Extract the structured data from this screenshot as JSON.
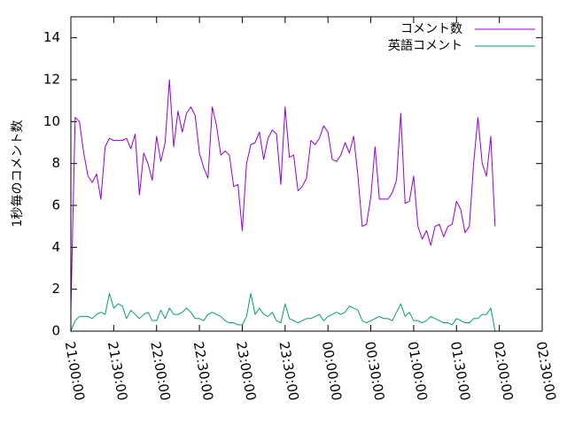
{
  "chart_data": {
    "type": "line",
    "title": "",
    "xlabel": "",
    "ylabel": "1秒毎のコメント数",
    "ylim": [
      0,
      15
    ],
    "yticks": [
      0,
      2,
      4,
      6,
      8,
      10,
      12,
      14
    ],
    "xlim": [
      "21:00:00",
      "02:30:00"
    ],
    "xticks": [
      "21:00:00",
      "21:30:00",
      "22:00:00",
      "22:30:00",
      "23:00:00",
      "23:30:00",
      "00:00:00",
      "00:30:00",
      "01:00:00",
      "01:30:00",
      "02:00:00",
      "02:30:00"
    ],
    "legend_position": "top-right",
    "grid": false,
    "series": [
      {
        "name": "コメント数",
        "color": "#9400d3",
        "points": [
          [
            "21:00:00",
            1.0
          ],
          [
            "21:03:00",
            10.2
          ],
          [
            "21:06:00",
            10.0
          ],
          [
            "21:09:00",
            8.5
          ],
          [
            "21:12:00",
            7.4
          ],
          [
            "21:15:00",
            7.1
          ],
          [
            "21:18:00",
            7.5
          ],
          [
            "21:21:00",
            6.3
          ],
          [
            "21:24:00",
            8.8
          ],
          [
            "21:27:00",
            9.2
          ],
          [
            "21:30:00",
            9.1
          ],
          [
            "21:33:00",
            9.1
          ],
          [
            "21:36:00",
            9.1
          ],
          [
            "21:39:00",
            9.2
          ],
          [
            "21:42:00",
            8.7
          ],
          [
            "21:45:00",
            9.4
          ],
          [
            "21:48:00",
            6.5
          ],
          [
            "21:51:00",
            8.5
          ],
          [
            "21:54:00",
            8.0
          ],
          [
            "21:57:00",
            7.2
          ],
          [
            "22:00:00",
            9.3
          ],
          [
            "22:03:00",
            8.1
          ],
          [
            "22:06:00",
            9.0
          ],
          [
            "22:09:00",
            12.0
          ],
          [
            "22:12:00",
            8.8
          ],
          [
            "22:15:00",
            10.5
          ],
          [
            "22:18:00",
            9.5
          ],
          [
            "22:21:00",
            10.4
          ],
          [
            "22:24:00",
            10.7
          ],
          [
            "22:27:00",
            10.3
          ],
          [
            "22:30:00",
            8.5
          ],
          [
            "22:33:00",
            7.8
          ],
          [
            "22:36:00",
            7.3
          ],
          [
            "22:39:00",
            10.7
          ],
          [
            "22:42:00",
            9.8
          ],
          [
            "22:45:00",
            8.4
          ],
          [
            "22:48:00",
            8.6
          ],
          [
            "22:51:00",
            8.4
          ],
          [
            "22:54:00",
            6.9
          ],
          [
            "22:57:00",
            7.0
          ],
          [
            "23:00:00",
            4.8
          ],
          [
            "23:03:00",
            8.0
          ],
          [
            "23:06:00",
            8.9
          ],
          [
            "23:09:00",
            9.0
          ],
          [
            "23:12:00",
            9.5
          ],
          [
            "23:15:00",
            8.2
          ],
          [
            "23:18:00",
            9.2
          ],
          [
            "23:21:00",
            9.6
          ],
          [
            "23:24:00",
            9.4
          ],
          [
            "23:27:00",
            7.0
          ],
          [
            "23:30:00",
            10.7
          ],
          [
            "23:33:00",
            8.3
          ],
          [
            "23:36:00",
            8.4
          ],
          [
            "23:39:00",
            6.7
          ],
          [
            "23:42:00",
            6.9
          ],
          [
            "23:45:00",
            7.3
          ],
          [
            "23:48:00",
            9.1
          ],
          [
            "23:51:00",
            8.9
          ],
          [
            "23:54:00",
            9.2
          ],
          [
            "23:57:00",
            9.8
          ],
          [
            "00:00:00",
            9.5
          ],
          [
            "00:03:00",
            8.2
          ],
          [
            "00:06:00",
            8.1
          ],
          [
            "00:09:00",
            8.4
          ],
          [
            "00:12:00",
            9.0
          ],
          [
            "00:15:00",
            8.5
          ],
          [
            "00:18:00",
            9.3
          ],
          [
            "00:21:00",
            7.4
          ],
          [
            "00:24:00",
            5.0
          ],
          [
            "00:27:00",
            5.1
          ],
          [
            "00:30:00",
            6.4
          ],
          [
            "00:33:00",
            8.8
          ],
          [
            "00:36:00",
            6.3
          ],
          [
            "00:39:00",
            6.3
          ],
          [
            "00:42:00",
            6.3
          ],
          [
            "00:45:00",
            6.6
          ],
          [
            "00:48:00",
            7.2
          ],
          [
            "00:51:00",
            10.4
          ],
          [
            "00:54:00",
            6.1
          ],
          [
            "00:57:00",
            6.2
          ],
          [
            "01:00:00",
            7.4
          ],
          [
            "01:03:00",
            5.0
          ],
          [
            "01:06:00",
            4.4
          ],
          [
            "01:09:00",
            4.8
          ],
          [
            "01:12:00",
            4.1
          ],
          [
            "01:15:00",
            5.0
          ],
          [
            "01:18:00",
            5.1
          ],
          [
            "01:21:00",
            4.5
          ],
          [
            "01:24:00",
            5.0
          ],
          [
            "01:27:00",
            5.1
          ],
          [
            "01:30:00",
            6.2
          ],
          [
            "01:33:00",
            5.8
          ],
          [
            "01:36:00",
            4.7
          ],
          [
            "01:39:00",
            5.0
          ],
          [
            "01:42:00",
            8.0
          ],
          [
            "01:45:00",
            10.2
          ],
          [
            "01:48:00",
            8.0
          ],
          [
            "01:51:00",
            7.4
          ],
          [
            "01:54:00",
            9.3
          ],
          [
            "01:57:00",
            5.0
          ]
        ]
      },
      {
        "name": "英語コメント",
        "color": "#009e73",
        "points": [
          [
            "21:00:00",
            0.0
          ],
          [
            "21:03:00",
            0.5
          ],
          [
            "21:06:00",
            0.7
          ],
          [
            "21:09:00",
            0.7
          ],
          [
            "21:12:00",
            0.7
          ],
          [
            "21:15:00",
            0.6
          ],
          [
            "21:18:00",
            0.8
          ],
          [
            "21:21:00",
            0.9
          ],
          [
            "21:24:00",
            0.8
          ],
          [
            "21:27:00",
            1.8
          ],
          [
            "21:30:00",
            1.1
          ],
          [
            "21:33:00",
            1.3
          ],
          [
            "21:36:00",
            1.2
          ],
          [
            "21:39:00",
            0.6
          ],
          [
            "21:42:00",
            1.0
          ],
          [
            "21:45:00",
            0.8
          ],
          [
            "21:48:00",
            0.6
          ],
          [
            "21:51:00",
            0.8
          ],
          [
            "21:54:00",
            0.9
          ],
          [
            "21:57:00",
            0.5
          ],
          [
            "22:00:00",
            0.5
          ],
          [
            "22:03:00",
            1.0
          ],
          [
            "22:06:00",
            0.6
          ],
          [
            "22:09:00",
            1.1
          ],
          [
            "22:12:00",
            0.8
          ],
          [
            "22:15:00",
            0.8
          ],
          [
            "22:18:00",
            0.9
          ],
          [
            "22:21:00",
            1.1
          ],
          [
            "22:24:00",
            0.9
          ],
          [
            "22:27:00",
            0.6
          ],
          [
            "22:30:00",
            0.6
          ],
          [
            "22:33:00",
            0.5
          ],
          [
            "22:36:00",
            0.8
          ],
          [
            "22:39:00",
            0.9
          ],
          [
            "22:42:00",
            0.8
          ],
          [
            "22:45:00",
            0.7
          ],
          [
            "22:48:00",
            0.5
          ],
          [
            "22:51:00",
            0.4
          ],
          [
            "22:54:00",
            0.4
          ],
          [
            "22:57:00",
            0.3
          ],
          [
            "23:00:00",
            0.3
          ],
          [
            "23:03:00",
            0.7
          ],
          [
            "23:06:00",
            1.8
          ],
          [
            "23:09:00",
            0.8
          ],
          [
            "23:12:00",
            1.1
          ],
          [
            "23:15:00",
            0.8
          ],
          [
            "23:18:00",
            0.7
          ],
          [
            "23:21:00",
            0.9
          ],
          [
            "23:24:00",
            0.5
          ],
          [
            "23:27:00",
            0.4
          ],
          [
            "23:30:00",
            1.3
          ],
          [
            "23:33:00",
            0.6
          ],
          [
            "23:36:00",
            0.5
          ],
          [
            "23:39:00",
            0.4
          ],
          [
            "23:42:00",
            0.5
          ],
          [
            "23:45:00",
            0.6
          ],
          [
            "23:48:00",
            0.6
          ],
          [
            "23:51:00",
            0.7
          ],
          [
            "23:54:00",
            0.8
          ],
          [
            "23:57:00",
            0.5
          ],
          [
            "00:00:00",
            0.7
          ],
          [
            "00:03:00",
            0.8
          ],
          [
            "00:06:00",
            0.9
          ],
          [
            "00:09:00",
            0.8
          ],
          [
            "00:12:00",
            0.9
          ],
          [
            "00:15:00",
            1.2
          ],
          [
            "00:18:00",
            1.1
          ],
          [
            "00:21:00",
            1.0
          ],
          [
            "00:24:00",
            0.5
          ],
          [
            "00:27:00",
            0.4
          ],
          [
            "00:30:00",
            0.5
          ],
          [
            "00:33:00",
            0.6
          ],
          [
            "00:36:00",
            0.7
          ],
          [
            "00:39:00",
            0.6
          ],
          [
            "00:42:00",
            0.6
          ],
          [
            "00:45:00",
            0.5
          ],
          [
            "00:48:00",
            0.9
          ],
          [
            "00:51:00",
            1.3
          ],
          [
            "00:54:00",
            0.7
          ],
          [
            "00:57:00",
            0.9
          ],
          [
            "01:00:00",
            0.5
          ],
          [
            "01:03:00",
            0.5
          ],
          [
            "01:06:00",
            0.4
          ],
          [
            "01:09:00",
            0.5
          ],
          [
            "01:12:00",
            0.7
          ],
          [
            "01:15:00",
            0.6
          ],
          [
            "01:18:00",
            0.5
          ],
          [
            "01:21:00",
            0.4
          ],
          [
            "01:24:00",
            0.4
          ],
          [
            "01:27:00",
            0.3
          ],
          [
            "01:30:00",
            0.6
          ],
          [
            "01:33:00",
            0.5
          ],
          [
            "01:36:00",
            0.4
          ],
          [
            "01:39:00",
            0.4
          ],
          [
            "01:42:00",
            0.6
          ],
          [
            "01:45:00",
            0.6
          ],
          [
            "01:48:00",
            0.8
          ],
          [
            "01:51:00",
            0.8
          ],
          [
            "01:54:00",
            1.1
          ],
          [
            "01:57:00",
            0.0
          ]
        ]
      }
    ]
  }
}
